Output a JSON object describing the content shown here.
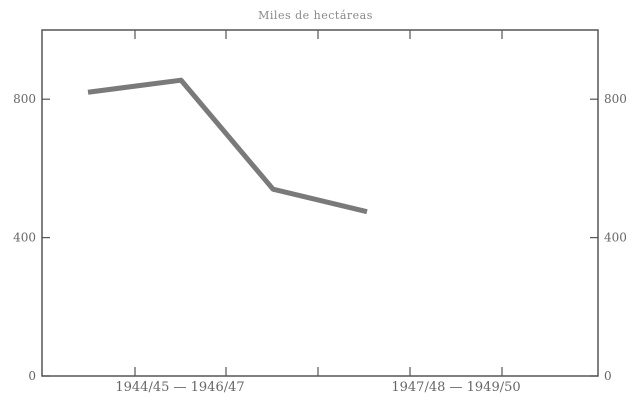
{
  "chart_data": {
    "type": "line",
    "title": "Miles de hectáreas",
    "ylim": [
      0,
      1000
    ],
    "y_ticks": [
      0,
      400,
      800
    ],
    "x_group_labels": [
      "1944/45 — 1946/47",
      "1947/48 — 1949/50"
    ],
    "x": [
      1,
      2,
      3,
      4
    ],
    "series": [
      {
        "values": [
          820,
          855,
          540,
          475
        ],
        "color": "#7a7a7a"
      }
    ],
    "grid": false,
    "right_axis_mirrors_left": true
  }
}
